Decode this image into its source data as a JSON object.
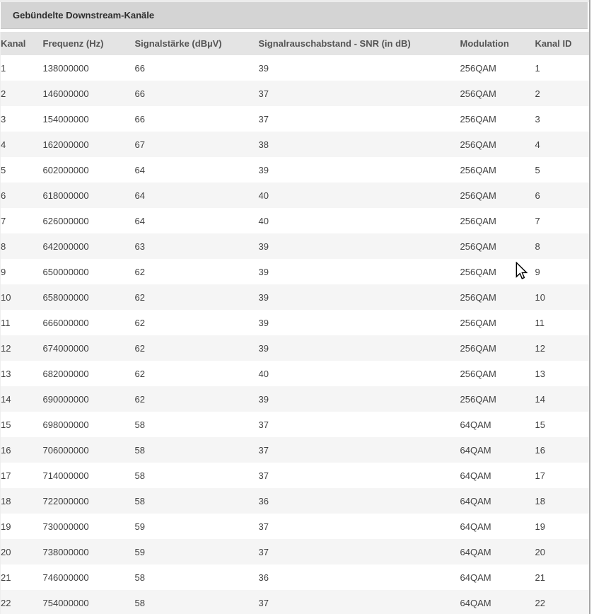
{
  "panel": {
    "title": "Gebündelte Downstream-Kanäle"
  },
  "table": {
    "columns": [
      "Kanal",
      "Frequenz (Hz)",
      "Signalstärke (dBµV)",
      "Signalrauschabstand - SNR (in dB)",
      "Modulation",
      "Kanal ID"
    ],
    "rows": [
      [
        "1",
        "138000000",
        "66",
        "39",
        "256QAM",
        "1"
      ],
      [
        "2",
        "146000000",
        "66",
        "37",
        "256QAM",
        "2"
      ],
      [
        "3",
        "154000000",
        "66",
        "37",
        "256QAM",
        "3"
      ],
      [
        "4",
        "162000000",
        "67",
        "38",
        "256QAM",
        "4"
      ],
      [
        "5",
        "602000000",
        "64",
        "39",
        "256QAM",
        "5"
      ],
      [
        "6",
        "618000000",
        "64",
        "40",
        "256QAM",
        "6"
      ],
      [
        "7",
        "626000000",
        "64",
        "40",
        "256QAM",
        "7"
      ],
      [
        "8",
        "642000000",
        "63",
        "39",
        "256QAM",
        "8"
      ],
      [
        "9",
        "650000000",
        "62",
        "39",
        "256QAM",
        "9"
      ],
      [
        "10",
        "658000000",
        "62",
        "39",
        "256QAM",
        "10"
      ],
      [
        "11",
        "666000000",
        "62",
        "39",
        "256QAM",
        "11"
      ],
      [
        "12",
        "674000000",
        "62",
        "39",
        "256QAM",
        "12"
      ],
      [
        "13",
        "682000000",
        "62",
        "40",
        "256QAM",
        "13"
      ],
      [
        "14",
        "690000000",
        "62",
        "39",
        "256QAM",
        "14"
      ],
      [
        "15",
        "698000000",
        "58",
        "37",
        "64QAM",
        "15"
      ],
      [
        "16",
        "706000000",
        "58",
        "37",
        "64QAM",
        "16"
      ],
      [
        "17",
        "714000000",
        "58",
        "37",
        "64QAM",
        "17"
      ],
      [
        "18",
        "722000000",
        "58",
        "36",
        "64QAM",
        "18"
      ],
      [
        "19",
        "730000000",
        "59",
        "37",
        "64QAM",
        "19"
      ],
      [
        "20",
        "738000000",
        "59",
        "37",
        "64QAM",
        "20"
      ],
      [
        "21",
        "746000000",
        "58",
        "36",
        "64QAM",
        "21"
      ],
      [
        "22",
        "754000000",
        "58",
        "37",
        "64QAM",
        "22"
      ]
    ]
  },
  "icons": {
    "cursor": "arrow-pointer"
  },
  "colors": {
    "title_bar": "#d4d4d4",
    "header_row": "#e4e4e4",
    "row_alt": "#f5f5f5",
    "right_border": "#a6a6a6",
    "title_text": "#2d2d2d",
    "header_text": "#555555",
    "cell_text": "#404040"
  }
}
